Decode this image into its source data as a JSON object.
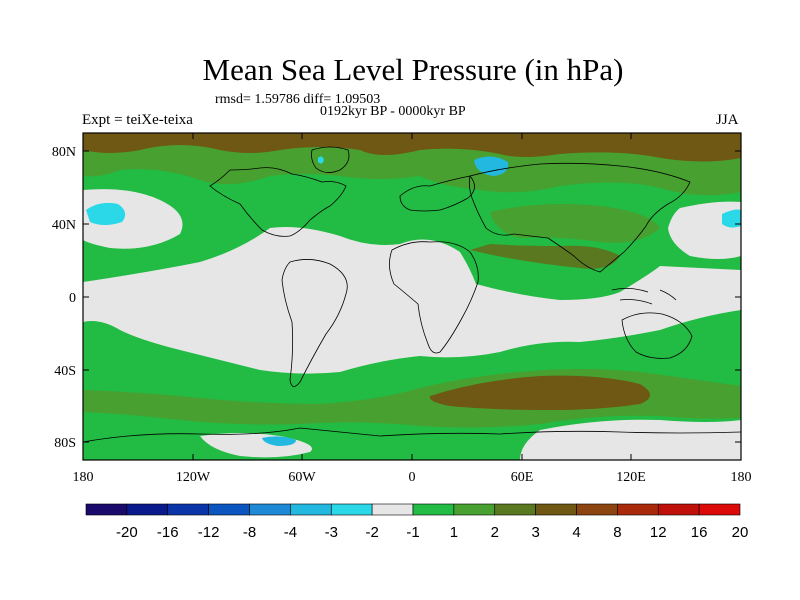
{
  "title": "Mean Sea Level Pressure (in hPa)",
  "stats": "rmsd= 1.59786 diff= 1.09503",
  "period": "0192kyr BP - 0000kyr BP",
  "experiment": "Expt = teiXe-teixa",
  "season": "JJA",
  "y_ticks": [
    "80N",
    "40N",
    "0",
    "40S",
    "80S"
  ],
  "x_ticks": [
    "180",
    "120W",
    "60W",
    "0",
    "60E",
    "120E",
    "180"
  ],
  "colorbar": {
    "colors": [
      "#1a0a6b",
      "#0a1a8c",
      "#0a35a8",
      "#0a55c0",
      "#1e8ad6",
      "#22b8e0",
      "#2ad8e8",
      "#e6e6e6",
      "#22bb44",
      "#48a030",
      "#5a7820",
      "#6e5814",
      "#8c4410",
      "#a82a0a",
      "#c0100a",
      "#dd0a0a"
    ],
    "labels": [
      "-20",
      "-16",
      "-12",
      "-8",
      "-4",
      "-3",
      "-2",
      "-1",
      "1",
      "2",
      "3",
      "4",
      "8",
      "12",
      "16",
      "20"
    ]
  },
  "palette": {
    "neutral": "#e6e6e6",
    "green": "#22bb44",
    "olive": "#48a030",
    "darkolive": "#5a7820",
    "brown": "#6e5814",
    "cyan": "#2ad8e8",
    "cyan2": "#22b8e0"
  }
}
